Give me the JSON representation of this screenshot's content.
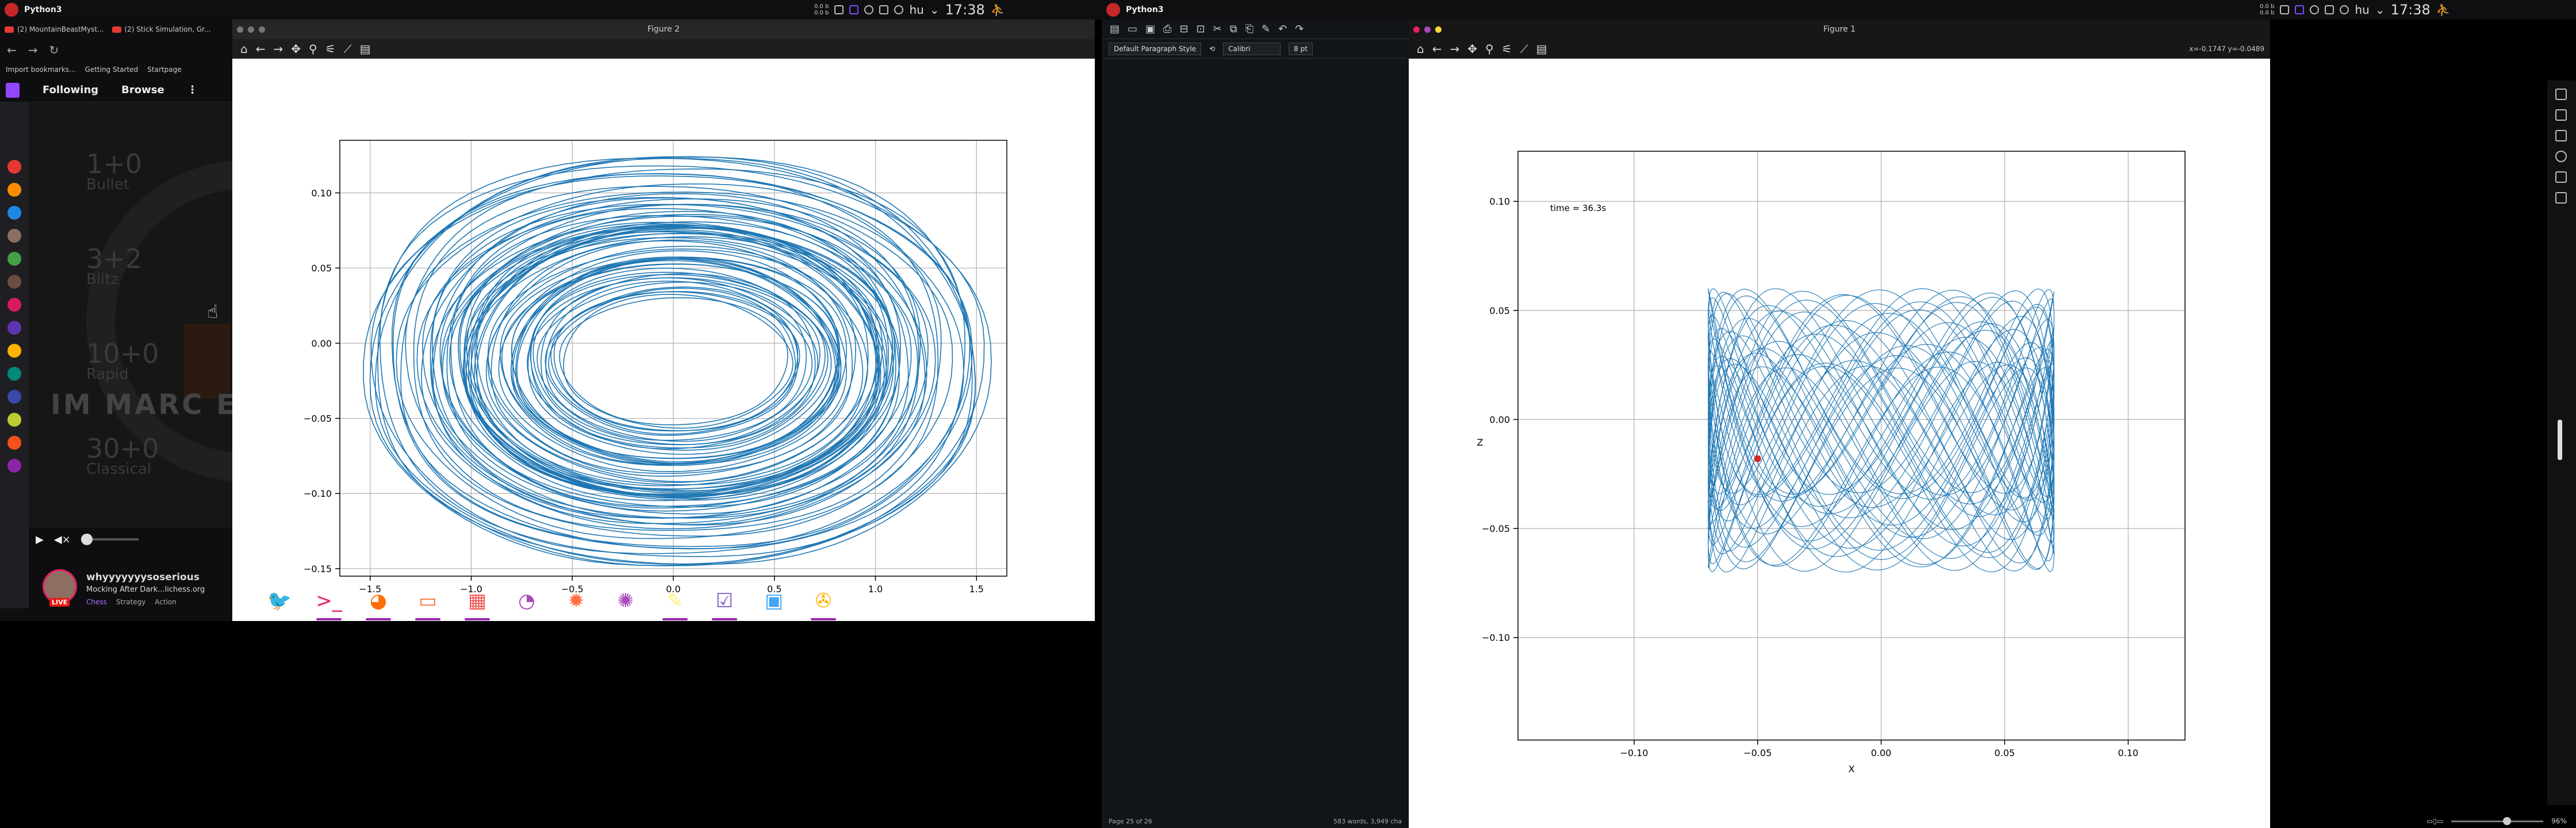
{
  "left_panel": {
    "title": "Python3",
    "clock": "17:38",
    "keyboard": "hu",
    "net_up": "0.0 b",
    "net_down": "0.0 b"
  },
  "right_panel": {
    "title": "Python3",
    "clock": "17:38",
    "keyboard": "hu",
    "net_up": "0.0 b",
    "net_down": "0.0 b"
  },
  "browser": {
    "tabs": [
      "(2) MountainBeastMyst...",
      "(2) Stick Simulation, Gr..."
    ],
    "bookmarks": [
      "Import bookmarks...",
      "Getting Started",
      "Startpage"
    ],
    "nav": {
      "following": "Following",
      "browse": "Browse",
      "more": "⋮"
    },
    "time_controls": [
      {
        "value": "1+0",
        "name": "Bullet"
      },
      {
        "value": "3+2",
        "name": "Blitz"
      },
      {
        "value": "10+0",
        "name": "Rapid"
      },
      {
        "value": "30+0",
        "name": "Classical"
      }
    ],
    "overlay_text": "IM MARC E",
    "channel": {
      "name": "whyyyyyyysoserious",
      "title": "Mocking After Dark...lichess.org",
      "live": "LIVE",
      "tags": [
        "Chess",
        "Strategy",
        "Action"
      ]
    },
    "rail_colors": [
      "#e53935",
      "#fb8c00",
      "#1e88e5",
      "#8d6e63",
      "#43a047",
      "#6d4c41",
      "#d81b60",
      "#5e35b1",
      "#ffb300",
      "#00897b",
      "#3949ab",
      "#c0ca33",
      "#f4511e",
      "#8e24aa"
    ]
  },
  "figure2": {
    "title": "Figure 2",
    "chart_data": {
      "type": "line",
      "title": "",
      "xlabel": "",
      "ylabel": "",
      "xlim": [
        -1.65,
        1.65
      ],
      "ylim": [
        -0.155,
        0.135
      ],
      "xticks": [
        "−1.5",
        "−1.0",
        "−0.5",
        "0.0",
        "0.5",
        "1.0",
        "1.5"
      ],
      "yticks": [
        "0.10",
        "0.05",
        "0.00",
        "−0.05",
        "−0.10",
        "−0.15"
      ],
      "grid": true,
      "series": [
        {
          "color": "#1f77b4",
          "shape": "phase-portrait annulus",
          "outer_x": [
            -1.52,
            1.54
          ],
          "outer_y": [
            -0.148,
            0.124
          ],
          "inner_x": [
            -0.47,
            0.47
          ],
          "inner_y": [
            -0.036,
            0.033
          ]
        }
      ]
    }
  },
  "figure1": {
    "title": "Figure 1",
    "readout": "x=-0.1747 y=-0.0489",
    "chart_data": {
      "type": "line",
      "title": "",
      "xlabel": "X",
      "ylabel": "Z",
      "xlim": [
        -0.147,
        0.123
      ],
      "ylim": [
        -0.147,
        0.123
      ],
      "xticks": [
        "−0.10",
        "−0.05",
        "0.00",
        "0.05",
        "0.10"
      ],
      "yticks": [
        "0.10",
        "0.05",
        "0.00",
        "−0.05",
        "−0.10"
      ],
      "grid": true,
      "annotation": "time = 36.3s",
      "series": [
        {
          "color": "#1f77b4",
          "shape": "Lissajous-like trajectory",
          "x_range": [
            -0.07,
            0.07
          ],
          "z_range": [
            -0.07,
            0.06
          ]
        }
      ],
      "marker": {
        "x": -0.05,
        "z": -0.018,
        "color": "#d62728"
      }
    }
  },
  "dock": {
    "apps": [
      {
        "name": "app-1",
        "glyph": "🐦",
        "color": "#e53935",
        "running": false
      },
      {
        "name": "terminal",
        "glyph": ">_",
        "color": "#e91e63",
        "running": true
      },
      {
        "name": "firefox",
        "glyph": "◕",
        "color": "#ff6d00",
        "running": true
      },
      {
        "name": "files",
        "glyph": "▭",
        "color": "#ff7043",
        "running": true
      },
      {
        "name": "pdf-viewer",
        "glyph": "▦",
        "color": "#ef5350",
        "running": true
      },
      {
        "name": "app-6",
        "glyph": "◔",
        "color": "#ab47bc",
        "running": false
      },
      {
        "name": "settings-orange",
        "glyph": "✹",
        "color": "#ff7043",
        "running": false
      },
      {
        "name": "settings",
        "glyph": "✺",
        "color": "#ab47bc",
        "running": false
      },
      {
        "name": "app-9",
        "glyph": "✎",
        "color": "#fff176",
        "running": true
      },
      {
        "name": "app-10",
        "glyph": "☑",
        "color": "#7e57c2",
        "running": true
      },
      {
        "name": "app-11",
        "glyph": "▣",
        "color": "#42a5f5",
        "running": false
      },
      {
        "name": "app-12",
        "glyph": "✇",
        "color": "#ffb300",
        "running": true
      }
    ]
  },
  "writer": {
    "style": "Default Paragraph Style",
    "font": "Calibri",
    "size": "8 pt",
    "page_status": "Page 25 of 26",
    "word_status": "583 words, 3,949 cha"
  },
  "right_status": {
    "zoom": "96%"
  }
}
